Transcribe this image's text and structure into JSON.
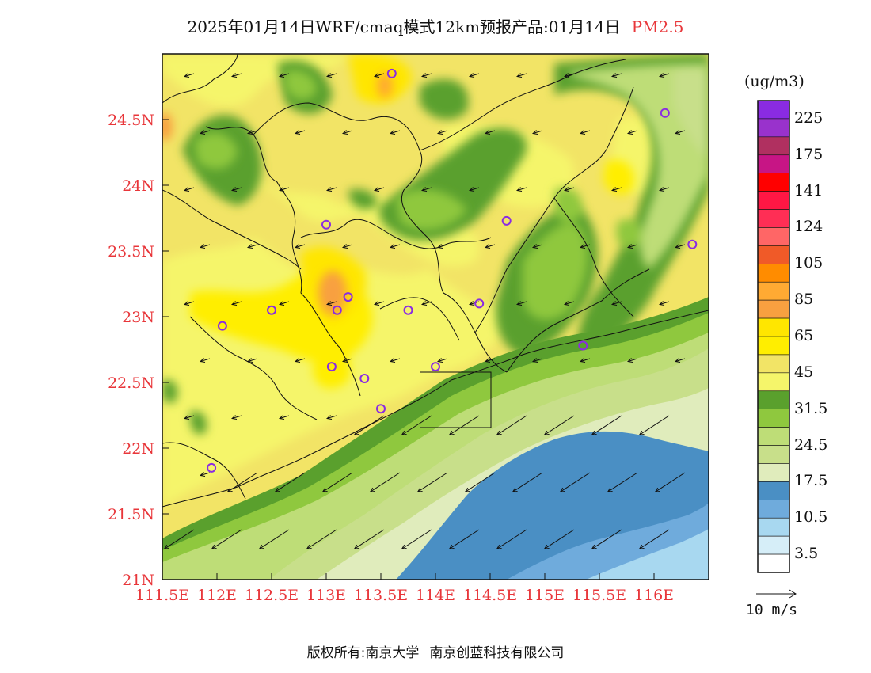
{
  "title": {
    "main": "2025年01月14日WRF/cmaq模式12km预报产品:01月14日",
    "species": "PM2.5"
  },
  "map": {
    "lon_range": [
      111.5,
      116.5
    ],
    "lat_range": [
      21.0,
      25.0
    ],
    "lon_ticks": [
      "111.5E",
      "112E",
      "112.5E",
      "113E",
      "113.5E",
      "114E",
      "114.5E",
      "115E",
      "115.5E",
      "116E"
    ],
    "lat_ticks": [
      "21N",
      "21.5N",
      "22N",
      "22.5N",
      "23N",
      "23.5N",
      "24N",
      "24.5N"
    ],
    "stations": [
      {
        "lon": 113.6,
        "lat": 24.85
      },
      {
        "lon": 113.0,
        "lat": 23.7
      },
      {
        "lon": 113.2,
        "lat": 23.15
      },
      {
        "lon": 113.1,
        "lat": 23.05
      },
      {
        "lon": 112.5,
        "lat": 23.05
      },
      {
        "lon": 112.05,
        "lat": 22.93
      },
      {
        "lon": 113.75,
        "lat": 23.05
      },
      {
        "lon": 114.4,
        "lat": 23.1
      },
      {
        "lon": 114.65,
        "lat": 23.73
      },
      {
        "lon": 116.1,
        "lat": 24.55
      },
      {
        "lon": 116.35,
        "lat": 23.55
      },
      {
        "lon": 115.35,
        "lat": 22.78
      },
      {
        "lon": 114.0,
        "lat": 22.62
      },
      {
        "lon": 113.05,
        "lat": 22.62
      },
      {
        "lon": 113.35,
        "lat": 22.53
      },
      {
        "lon": 113.5,
        "lat": 22.3
      },
      {
        "lon": 111.95,
        "lat": 21.85
      }
    ]
  },
  "colorbar": {
    "unit": "(ug/m3)",
    "colors": [
      "#8a2be2",
      "#9932cc",
      "#b03060",
      "#c71585",
      "#ff0000",
      "#ff1744",
      "#ff2e55",
      "#ff6666",
      "#f05a28",
      "#ff8c00",
      "#ffaa33",
      "#f8a040",
      "#ffe600",
      "#ffee00",
      "#f2e466",
      "#f5f56a",
      "#5aa02d",
      "#8fc83e",
      "#bedd77",
      "#c8df8a",
      "#e0ecbc",
      "#4a8fc4",
      "#6fabdc",
      "#a8d8f0",
      "#d6eef8",
      "#ffffff"
    ],
    "labels": [
      "225",
      "175",
      "141",
      "124",
      "105",
      "85",
      "65",
      "45",
      "31.5",
      "24.5",
      "17.5",
      "10.5",
      "3.5"
    ]
  },
  "wind": {
    "ref_label": "10 m/s"
  },
  "footer": {
    "left": "版权所有:南京大学",
    "right": "南京创蓝科技有限公司"
  }
}
